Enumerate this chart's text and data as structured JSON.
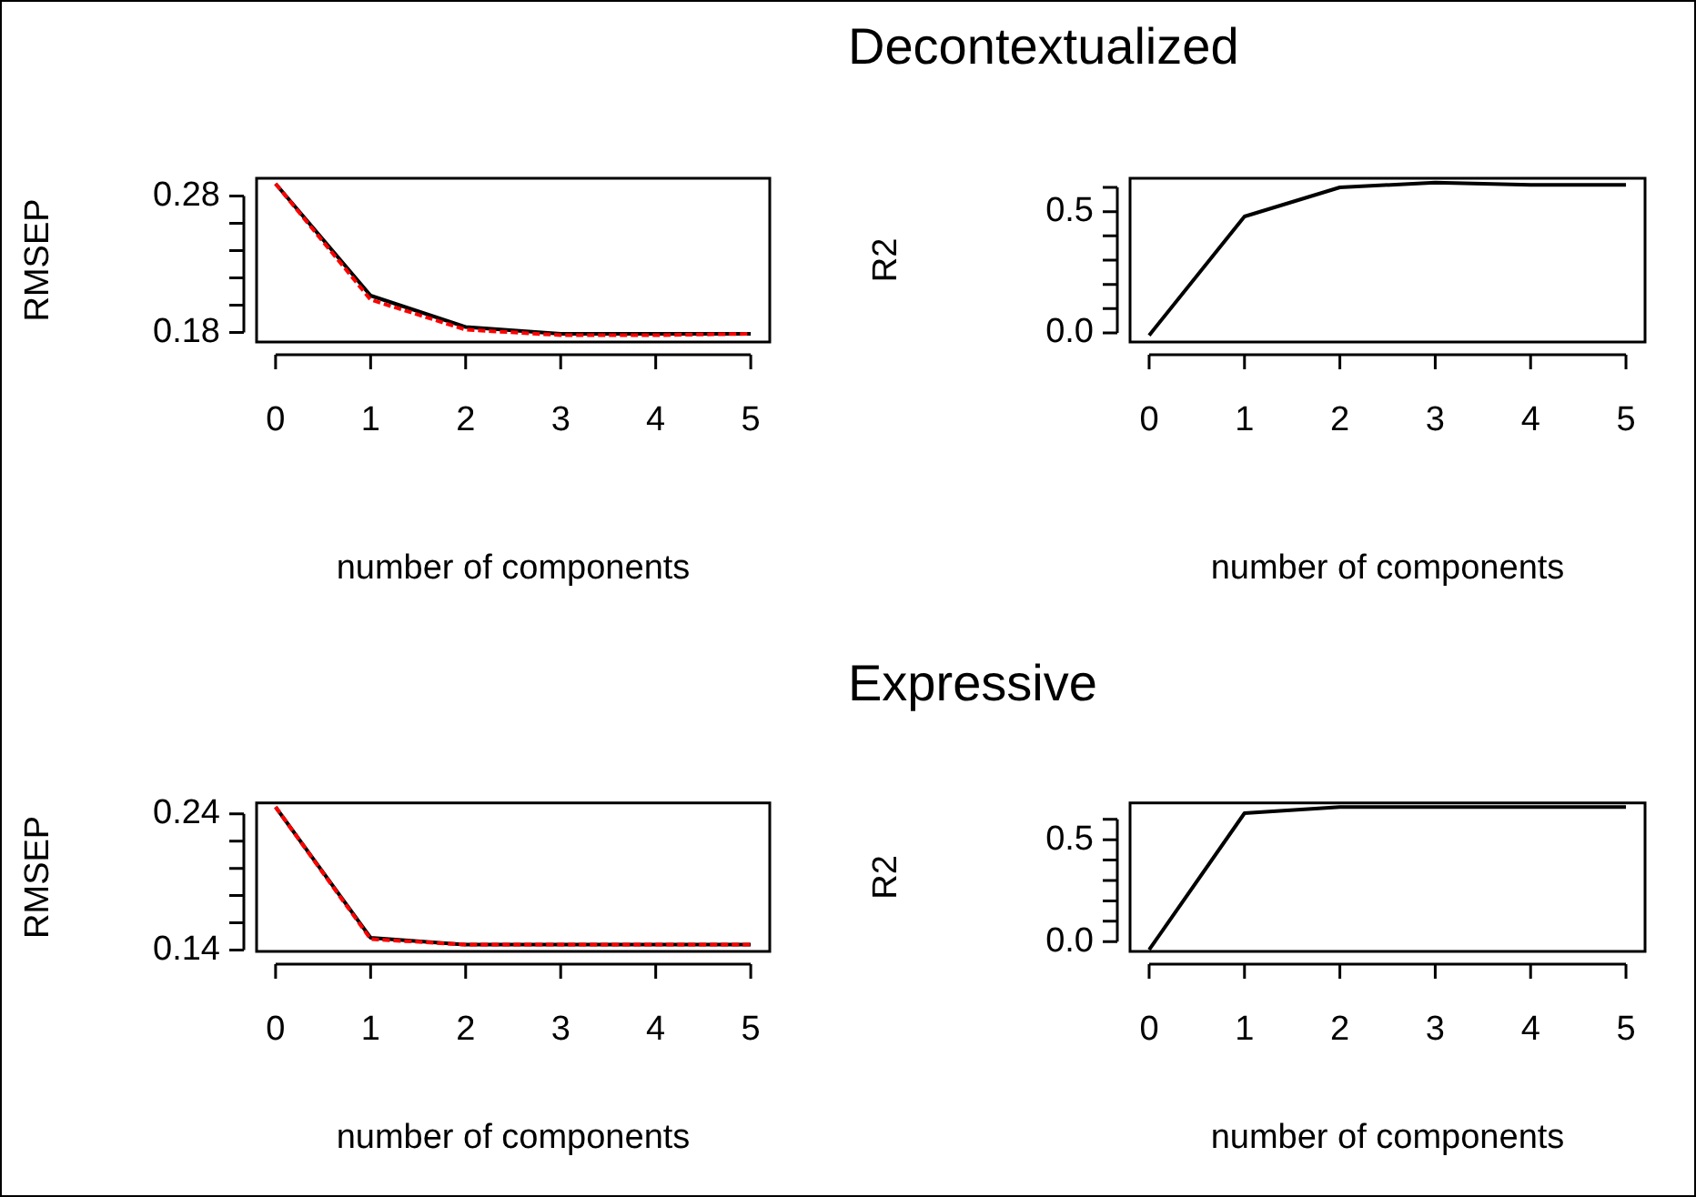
{
  "chart_data": [
    {
      "type": "line",
      "xlabel": "number of components",
      "ylabel": "RMSEP",
      "x": [
        0,
        1,
        2,
        3,
        4,
        5
      ],
      "series": [
        {
          "color": "#000000",
          "line_style": "solid",
          "values": [
            0.289,
            0.207,
            0.184,
            0.179,
            0.179,
            0.179
          ]
        },
        {
          "color": "#ff0000",
          "line_style": "dashed",
          "values": [
            0.289,
            0.204,
            0.182,
            0.178,
            0.178,
            0.179
          ]
        }
      ],
      "xlim": [
        -0.2,
        5.2
      ],
      "xticks": [
        0,
        1,
        2,
        3,
        4,
        5
      ],
      "ylim": [
        0.173,
        0.293
      ],
      "yticks": [
        0.18,
        {
          "value": 0.2,
          "label": null
        },
        {
          "value": 0.22,
          "label": null
        },
        {
          "value": 0.24,
          "label": null
        },
        {
          "value": 0.26,
          "label": null
        },
        0.28
      ]
    },
    {
      "type": "line",
      "title": "Decontextualized",
      "xlabel": "number of components",
      "ylabel": "R2",
      "x": [
        0,
        1,
        2,
        3,
        4,
        5
      ],
      "series": [
        {
          "color": "#000000",
          "line_style": "solid",
          "values": [
            -0.01,
            0.48,
            0.6,
            0.62,
            0.61,
            0.61
          ]
        }
      ],
      "xlim": [
        -0.2,
        5.2
      ],
      "xticks": [
        0,
        1,
        2,
        3,
        4,
        5
      ],
      "ylim": [
        -0.0375,
        0.6375
      ],
      "yticks": [
        {
          "value": 0,
          "label": "0.0"
        },
        {
          "value": 0.1,
          "label": null
        },
        {
          "value": 0.2,
          "label": null
        },
        {
          "value": 0.3,
          "label": null
        },
        {
          "value": 0.4,
          "label": null
        },
        0.5,
        {
          "value": 0.6,
          "label": null
        }
      ]
    },
    {
      "type": "line",
      "xlabel": "number of components",
      "ylabel": "RMSEP",
      "x": [
        0,
        1,
        2,
        3,
        4,
        5
      ],
      "series": [
        {
          "color": "#000000",
          "line_style": "solid",
          "values": [
            0.245,
            0.149,
            0.144,
            0.144,
            0.144,
            0.144
          ]
        },
        {
          "color": "#ff0000",
          "line_style": "dashed",
          "values": [
            0.245,
            0.148,
            0.144,
            0.144,
            0.144,
            0.144
          ]
        }
      ],
      "xlim": [
        -0.2,
        5.2
      ],
      "xticks": [
        0,
        1,
        2,
        3,
        4,
        5
      ],
      "ylim": [
        0.139,
        0.248
      ],
      "yticks": [
        0.14,
        {
          "value": 0.16,
          "label": null
        },
        {
          "value": 0.18,
          "label": null
        },
        {
          "value": 0.2,
          "label": null
        },
        {
          "value": 0.22,
          "label": null
        },
        0.24
      ]
    },
    {
      "type": "line",
      "title": "Expressive",
      "xlabel": "number of components",
      "ylabel": "R2",
      "x": [
        0,
        1,
        2,
        3,
        4,
        5
      ],
      "series": [
        {
          "color": "#000000",
          "line_style": "solid",
          "values": [
            -0.04,
            0.63,
            0.66,
            0.66,
            0.66,
            0.66
          ]
        }
      ],
      "xlim": [
        -0.2,
        5.2
      ],
      "xticks": [
        0,
        1,
        2,
        3,
        4,
        5
      ],
      "ylim": [
        -0.048,
        0.68
      ],
      "yticks": [
        {
          "value": 0,
          "label": "0.0"
        },
        {
          "value": 0.1,
          "label": null
        },
        {
          "value": 0.2,
          "label": null
        },
        {
          "value": 0.3,
          "label": null
        },
        {
          "value": 0.4,
          "label": null
        },
        0.5,
        {
          "value": 0.6,
          "label": null
        }
      ]
    }
  ]
}
